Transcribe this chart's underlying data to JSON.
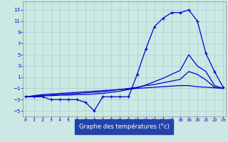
{
  "hours": [
    0,
    1,
    2,
    3,
    4,
    5,
    6,
    7,
    8,
    9,
    10,
    11,
    12,
    13,
    14,
    15,
    16,
    17,
    18,
    19,
    20,
    21,
    22,
    23
  ],
  "temp_main": [
    -2.5,
    -2.5,
    -2.5,
    -3,
    -3,
    -3,
    -3,
    -3.5,
    -5,
    -2.5,
    -2.5,
    -2.5,
    -2.5,
    1.5,
    6,
    10,
    11.5,
    12.5,
    12.5,
    13,
    11,
    5.2,
    2,
    -0.8
  ],
  "line1": [
    -2.5,
    -2.3,
    -2.1,
    -2.0,
    -1.9,
    -1.8,
    -1.7,
    -1.6,
    -1.5,
    -1.4,
    -1.3,
    -1.2,
    -1.1,
    -1.0,
    -0.9,
    -0.8,
    -0.7,
    -0.6,
    -0.5,
    -0.5,
    -0.7,
    -0.8,
    -0.9,
    -1.0
  ],
  "line2": [
    -2.5,
    -2.4,
    -2.3,
    -2.2,
    -2.1,
    -2.0,
    -1.9,
    -1.8,
    -1.7,
    -1.6,
    -1.4,
    -1.2,
    -1.0,
    -0.8,
    -0.5,
    -0.3,
    0.0,
    0.3,
    0.6,
    2.0,
    1.5,
    0.5,
    -0.8,
    -1.0
  ],
  "line3": [
    -2.5,
    -2.4,
    -2.3,
    -2.3,
    -2.2,
    -2.2,
    -2.1,
    -2.1,
    -2.0,
    -1.9,
    -1.7,
    -1.5,
    -1.2,
    -0.9,
    -0.4,
    0.2,
    0.8,
    1.5,
    2.2,
    5.0,
    3.0,
    2.0,
    -0.5,
    -1.0
  ],
  "yticks": [
    -5,
    -3,
    -1,
    1,
    3,
    5,
    7,
    9,
    11,
    13
  ],
  "xticks": [
    0,
    1,
    2,
    3,
    4,
    5,
    6,
    7,
    8,
    9,
    10,
    11,
    12,
    13,
    14,
    15,
    16,
    17,
    18,
    19,
    20,
    21,
    22,
    23
  ],
  "xlabel": "Graphe des températures (°c)",
  "line_color": "#0000cc",
  "bg_color": "#cce8e4",
  "grid_color": "#aacccc",
  "xaxis_bg": "#2244aa"
}
